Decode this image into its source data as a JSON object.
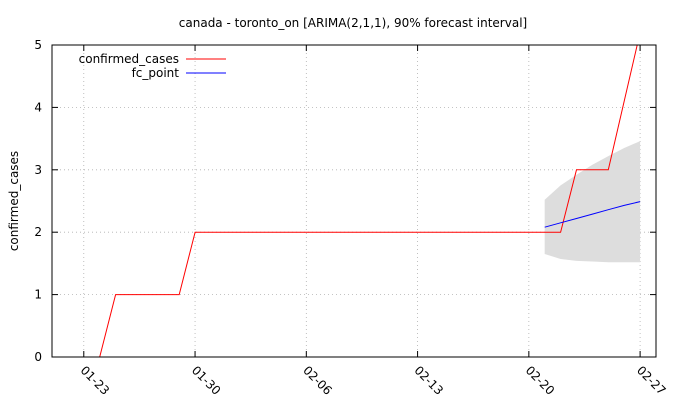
{
  "chart_data": {
    "type": "line",
    "title": "canada - toronto_on [ARIMA(2,1,1), 90% forecast interval]",
    "xlabel": "",
    "ylabel": "confirmed_cases",
    "x_type": "date",
    "xlim": [
      "2020-01-21",
      "2020-02-28"
    ],
    "ylim": [
      0,
      5
    ],
    "x_ticks": [
      {
        "date": "2020-01-23",
        "label": "01-23"
      },
      {
        "date": "2020-01-30",
        "label": "01-30"
      },
      {
        "date": "2020-02-06",
        "label": "02-06"
      },
      {
        "date": "2020-02-13",
        "label": "02-13"
      },
      {
        "date": "2020-02-20",
        "label": "02-20"
      },
      {
        "date": "2020-02-27",
        "label": "02-27"
      }
    ],
    "y_ticks": [
      {
        "value": 0,
        "label": "0"
      },
      {
        "value": 1,
        "label": "1"
      },
      {
        "value": 2,
        "label": "2"
      },
      {
        "value": 3,
        "label": "3"
      },
      {
        "value": 4,
        "label": "4"
      },
      {
        "value": 5,
        "label": "5"
      }
    ],
    "grid": true,
    "legend_position": "top-left",
    "series": [
      {
        "name": "confirmed_cases",
        "color": "#ff0000",
        "points": [
          {
            "x": "2020-01-24",
            "y": 0
          },
          {
            "x": "2020-01-25",
            "y": 1
          },
          {
            "x": "2020-01-29",
            "y": 1
          },
          {
            "x": "2020-01-30",
            "y": 2
          },
          {
            "x": "2020-02-22",
            "y": 2
          },
          {
            "x": "2020-02-23",
            "y": 3
          },
          {
            "x": "2020-02-25",
            "y": 3
          },
          {
            "x": "2020-02-27",
            "y": 5.2
          }
        ]
      },
      {
        "name": "fc_point",
        "color": "#0000ff",
        "points": [
          {
            "x": "2020-02-21",
            "y": 2.08
          },
          {
            "x": "2020-02-22",
            "y": 2.15
          },
          {
            "x": "2020-02-23",
            "y": 2.22
          },
          {
            "x": "2020-02-24",
            "y": 2.29
          },
          {
            "x": "2020-02-25",
            "y": 2.36
          },
          {
            "x": "2020-02-26",
            "y": 2.43
          },
          {
            "x": "2020-02-27",
            "y": 2.49
          }
        ]
      }
    ],
    "forecast_band": {
      "color": "#dddddd",
      "points": [
        {
          "x": "2020-02-21",
          "lower": 1.65,
          "upper": 2.52
        },
        {
          "x": "2020-02-22",
          "lower": 1.57,
          "upper": 2.75
        },
        {
          "x": "2020-02-23",
          "lower": 1.54,
          "upper": 2.92
        },
        {
          "x": "2020-02-24",
          "lower": 1.53,
          "upper": 3.08
        },
        {
          "x": "2020-02-25",
          "lower": 1.52,
          "upper": 3.22
        },
        {
          "x": "2020-02-26",
          "lower": 1.52,
          "upper": 3.35
        },
        {
          "x": "2020-02-27",
          "lower": 1.52,
          "upper": 3.46
        }
      ]
    }
  }
}
